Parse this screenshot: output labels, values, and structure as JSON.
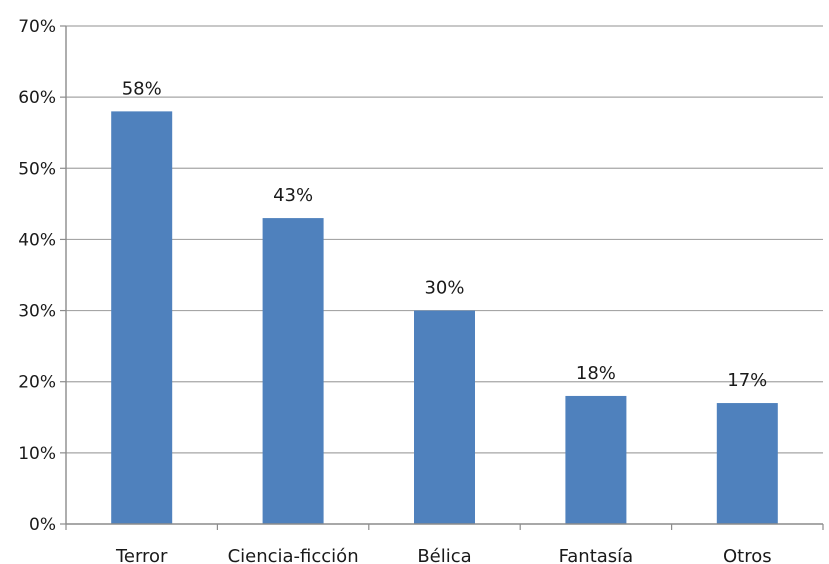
{
  "chart_data": {
    "type": "bar",
    "categories": [
      "Terror",
      "Ciencia-ficción",
      "Bélica",
      "Fantasía",
      "Otros"
    ],
    "values": [
      58,
      43,
      30,
      18,
      17
    ],
    "data_labels": [
      "58%",
      "43%",
      "30%",
      "18%",
      "17%"
    ],
    "y_ticks": [
      "0%",
      "10%",
      "20%",
      "30%",
      "40%",
      "50%",
      "60%",
      "70%"
    ],
    "ylim": [
      0,
      70
    ],
    "y_step": 10,
    "grid": true,
    "legend": "none",
    "bar_color": "#4f81bd",
    "grid_color": "#a6a6a6",
    "axis_color": "#8c8c8c"
  }
}
